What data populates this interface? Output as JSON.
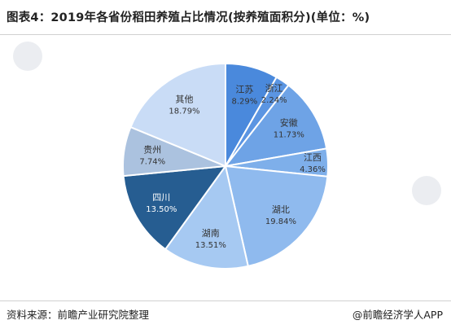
{
  "header": {
    "title": "图表4：2019年各省份稻田养殖占比情况(按养殖面积分)(单位：%)"
  },
  "footer": {
    "source": "资料来源：前瞻产业研究院整理",
    "watermark": "@前瞻经济学人APP"
  },
  "chart_data": {
    "type": "pie",
    "unit": "%",
    "slices": [
      {
        "label": "江苏",
        "value": 8.29,
        "display": "8.29%",
        "color": "#4a89dc",
        "label_color": "#333333"
      },
      {
        "label": "浙江",
        "value": 2.24,
        "display": "2.24%",
        "color": "#5b95e2",
        "label_color": "#333333"
      },
      {
        "label": "安徽",
        "value": 11.73,
        "display": "11.73%",
        "color": "#6ea3e6",
        "label_color": "#333333"
      },
      {
        "label": "江西",
        "value": 4.36,
        "display": "4.36%",
        "color": "#7eafea",
        "label_color": "#333333"
      },
      {
        "label": "湖北",
        "value": 19.84,
        "display": "19.84%",
        "color": "#8fbaee",
        "label_color": "#333333"
      },
      {
        "label": "湖南",
        "value": 13.51,
        "display": "13.51%",
        "color": "#a6c9f2",
        "label_color": "#333333"
      },
      {
        "label": "四川",
        "value": 13.5,
        "display": "13.50%",
        "color": "#265d91",
        "label_color": "#ffffff"
      },
      {
        "label": "贵州",
        "value": 7.74,
        "display": "7.74%",
        "color": "#abc2df",
        "label_color": "#333333"
      },
      {
        "label": "其他",
        "value": 18.79,
        "display": "18.79%",
        "color": "#c9dcf6",
        "label_color": "#333333"
      }
    ]
  }
}
